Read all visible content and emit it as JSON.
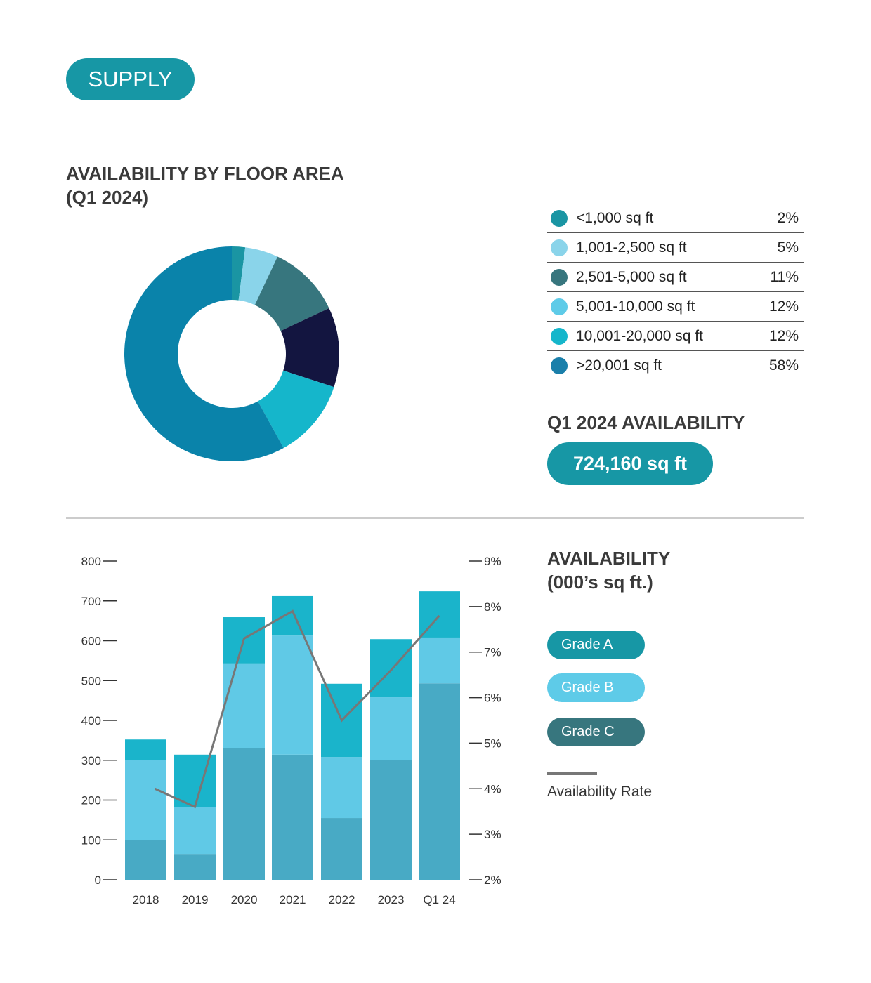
{
  "section_label": "SUPPLY",
  "donut": {
    "title_line1": "AVAILABILITY BY FLOOR AREA",
    "title_line2": "(Q1 2024)"
  },
  "availability_total": {
    "label": "Q1 2024 AVAILABILITY",
    "value": "724,160 sq ft"
  },
  "bar_section": {
    "title_line1": "AVAILABILITY",
    "title_line2": "(000’s sq ft.)",
    "legend": [
      {
        "label": "Grade A",
        "color": "#1797a5"
      },
      {
        "label": "Grade B",
        "color": "#5ecbe8"
      },
      {
        "label": "Grade C",
        "color": "#37767e"
      }
    ],
    "rate_legend": "Availability Rate"
  },
  "chart_data": [
    {
      "type": "pie",
      "title": "AVAILABILITY BY FLOOR AREA (Q1 2024)",
      "donut": true,
      "slices": [
        {
          "label": "<1,000 sq ft",
          "value": 2,
          "display": "2%",
          "color": "#1a95a3",
          "legend_color": "#1a95a3"
        },
        {
          "label": "1,001-2,500 sq ft",
          "value": 5,
          "display": "5%",
          "color": "#8ad4ea",
          "legend_color": "#8ad4ea"
        },
        {
          "label": "2,501-5,000 sq ft",
          "value": 11,
          "display": "11%",
          "color": "#37767e",
          "legend_color": "#37767e"
        },
        {
          "label": "5,001-10,000 sq ft",
          "value": 12,
          "display": "12%",
          "color": "#131540",
          "legend_color": "#5ecbe8"
        },
        {
          "label": "10,001-20,000 sq ft",
          "value": 12,
          "display": "12%",
          "color": "#15b6cb",
          "legend_color": "#15b6cb"
        },
        {
          "label": ">20,001 sq ft",
          "value": 58,
          "display": "58%",
          "color": "#0a83aa",
          "legend_color": "#1a7faa"
        }
      ]
    },
    {
      "type": "bar",
      "stacked": true,
      "title": "AVAILABILITY (000’s sq ft.)",
      "categories": [
        "2018",
        "2019",
        "2020",
        "2021",
        "2022",
        "2023",
        "Q1 24"
      ],
      "ylim": [
        0,
        800
      ],
      "yticks": [
        0,
        100,
        200,
        300,
        400,
        500,
        600,
        700,
        800
      ],
      "y2lim": [
        2,
        9
      ],
      "y2ticks": [
        "2%",
        "3%",
        "4%",
        "5%",
        "6%",
        "7%",
        "8%",
        "9%"
      ],
      "series": [
        {
          "name": "Grade A",
          "color": "#48aac5",
          "values": [
            100,
            65,
            331,
            314,
            155,
            301,
            493
          ]
        },
        {
          "name": "Grade B",
          "color": "#60c9e6",
          "values": [
            200,
            118,
            212,
            299,
            153,
            157,
            115
          ]
        },
        {
          "name": "Grade C",
          "color": "#1ab4cb",
          "values": [
            52,
            131,
            116,
            99,
            184,
            146,
            116
          ]
        }
      ],
      "line": {
        "name": "Availability Rate",
        "axis": "right",
        "color": "#777777",
        "values": [
          4.0,
          3.6,
          7.3,
          7.9,
          5.5,
          6.6,
          7.8
        ]
      }
    }
  ]
}
